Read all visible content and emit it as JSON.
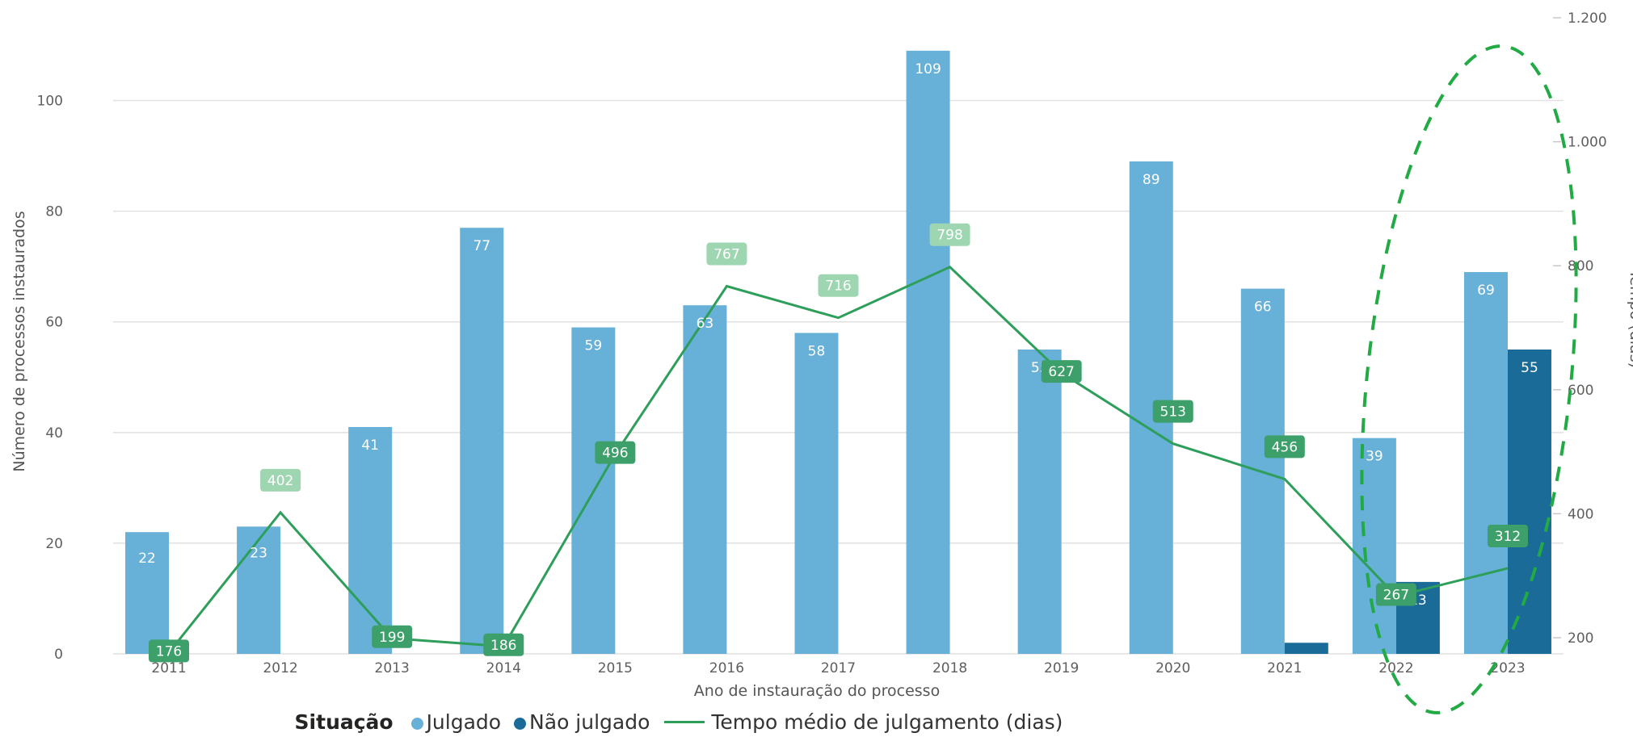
{
  "legend": {
    "title": "Situação",
    "items": [
      "Julgado",
      "Não julgado",
      "Tempo médio de julgamento (dias)"
    ]
  },
  "colors": {
    "julgado": "#67b0d8",
    "nao_julgado": "#1a6b98",
    "line": "#2e9e5b",
    "label_dark": "#3da06a",
    "label_light": "#9fd6b2",
    "highlight": "#22aa44",
    "grid": "#e1e1e1"
  },
  "chart_data": {
    "type": "bar",
    "categories": [
      "2011",
      "2012",
      "2013",
      "2014",
      "2015",
      "2016",
      "2017",
      "2018",
      "2019",
      "2020",
      "2021",
      "2022",
      "2023"
    ],
    "series": [
      {
        "name": "Julgado",
        "type": "bar",
        "axis": "left",
        "values": [
          22,
          23,
          41,
          77,
          59,
          63,
          58,
          109,
          55,
          89,
          66,
          39,
          69
        ]
      },
      {
        "name": "Não julgado",
        "type": "bar",
        "axis": "left",
        "values": [
          null,
          null,
          null,
          null,
          null,
          null,
          null,
          null,
          null,
          null,
          2,
          13,
          55
        ],
        "labels": [
          null,
          null,
          null,
          null,
          null,
          null,
          null,
          null,
          null,
          null,
          null,
          "13",
          "55"
        ]
      },
      {
        "name": "Tempo médio de julgamento (dias)",
        "type": "line",
        "axis": "right",
        "values": [
          176,
          402,
          199,
          186,
          496,
          767,
          716,
          798,
          627,
          513,
          456,
          267,
          312
        ]
      }
    ],
    "xlabel": "Ano de instauração do processo",
    "ylabel": "Número de processos instaurados",
    "y2label": "Tempo (dias)",
    "ylim": [
      0,
      110
    ],
    "y2lim": [
      180,
      1200
    ],
    "yticks": [
      "0",
      "20",
      "40",
      "60",
      "80",
      "100"
    ],
    "y2ticks": [
      "200",
      "400",
      "600",
      "800",
      "1.000",
      "1.200"
    ],
    "grid": true,
    "legend_position": "bottom",
    "annotation": "dashed green ellipse around 2023"
  }
}
